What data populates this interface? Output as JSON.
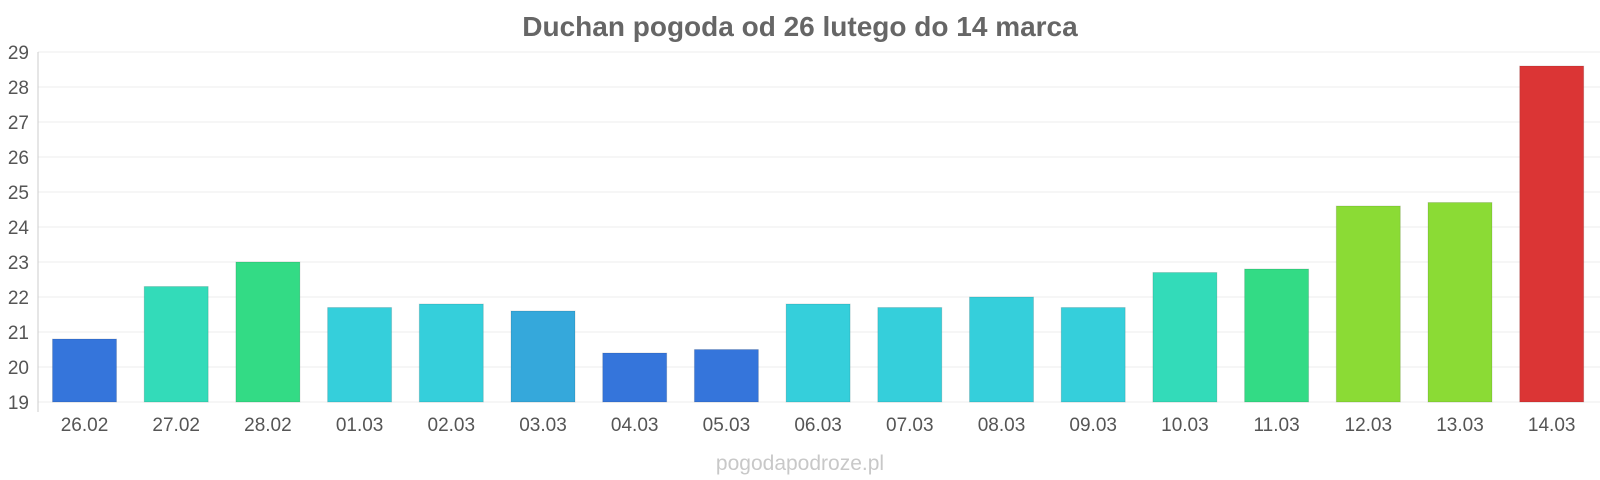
{
  "chart_data": {
    "type": "bar",
    "title": "Duchan pogoda od 26 lutego do 14 marca",
    "xlabel": "",
    "ylabel": "",
    "categories": [
      "26.02",
      "27.02",
      "28.02",
      "01.03",
      "02.03",
      "03.03",
      "04.03",
      "05.03",
      "06.03",
      "07.03",
      "08.03",
      "09.03",
      "10.03",
      "11.03",
      "12.03",
      "13.03",
      "14.03"
    ],
    "values": [
      20.8,
      22.3,
      23.0,
      21.7,
      21.8,
      21.6,
      20.4,
      20.5,
      21.8,
      21.7,
      22.0,
      21.7,
      22.7,
      22.8,
      24.6,
      24.7,
      28.6
    ],
    "colors": [
      "#3575db",
      "#33dbb9",
      "#33db85",
      "#35cfdb",
      "#35cfdb",
      "#35a8db",
      "#3575db",
      "#3575db",
      "#35cfdb",
      "#35cfdb",
      "#35cfdb",
      "#35cfdb",
      "#33dbb9",
      "#33db85",
      "#8bdb35",
      "#8bdb35",
      "#db3535"
    ],
    "ylim": [
      19,
      29
    ],
    "yticks": [
      19,
      20,
      21,
      22,
      23,
      24,
      25,
      26,
      27,
      28,
      29
    ],
    "grid": true,
    "legend": "none"
  },
  "watermark": "pogodapodroze.pl"
}
